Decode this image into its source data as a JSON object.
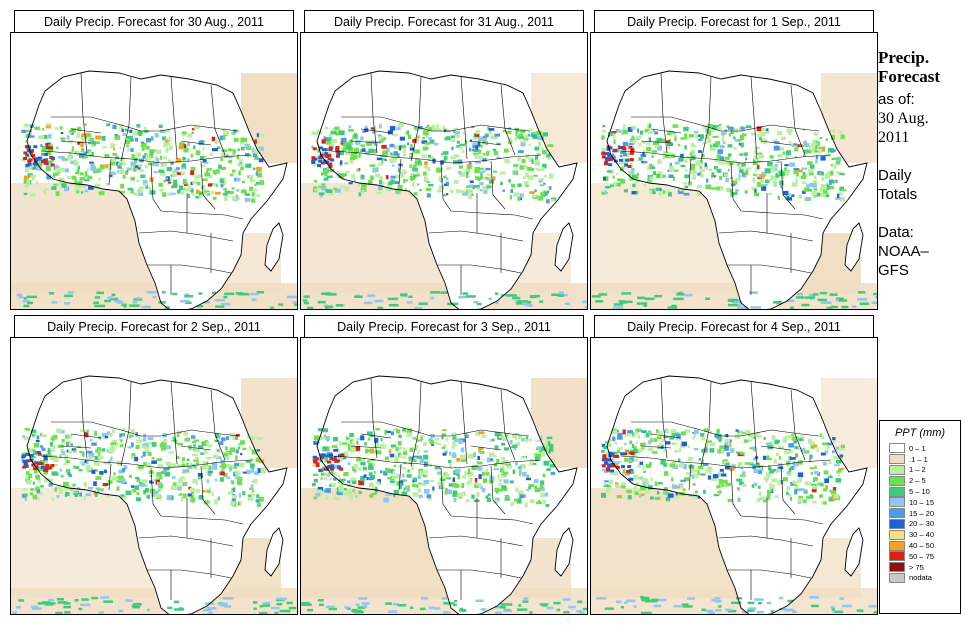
{
  "panels": [
    {
      "title": "Daily Precip. Forecast for  30 Aug., 2011",
      "seed": 1
    },
    {
      "title": "Daily Precip. Forecast for  31 Aug., 2011",
      "seed": 2
    },
    {
      "title": "Daily Precip. Forecast for  1 Sep., 2011",
      "seed": 3
    },
    {
      "title": "Daily Precip. Forecast for  2 Sep., 2011",
      "seed": 4
    },
    {
      "title": "Daily Precip. Forecast for  3 Sep., 2011",
      "seed": 5
    },
    {
      "title": "Daily Precip. Forecast for  4 Sep., 2011",
      "seed": 6
    }
  ],
  "sidebar": {
    "heading1": "Precip.",
    "heading2": "Forecast",
    "asof": "as of:",
    "date1": "30 Aug.",
    "date2": "2011",
    "daily1": "Daily",
    "daily2": "Totals",
    "data1": "Data:",
    "data2": "NOAA–",
    "data3": "GFS"
  },
  "legend": {
    "title": "PPT (mm)",
    "items": [
      {
        "label": "0 – 1",
        "color": "#ffffff"
      },
      {
        "label": ".1 – 1",
        "color": "#f0dcc0"
      },
      {
        "label": "1 – 2",
        "color": "#b8f0a0"
      },
      {
        "label": "2 – 5",
        "color": "#6ee04e"
      },
      {
        "label": "5 – 10",
        "color": "#3ecb7a"
      },
      {
        "label": "10 – 15",
        "color": "#8cc8f0"
      },
      {
        "label": "15 – 20",
        "color": "#4f9ae8"
      },
      {
        "label": "20 – 30",
        "color": "#1f5fd8"
      },
      {
        "label": "30 – 40",
        "color": "#f8e080"
      },
      {
        "label": "40 – 50",
        "color": "#f8a020"
      },
      {
        "label": "50 – 75",
        "color": "#e02010"
      },
      {
        "label": "> 75",
        "color": "#901010"
      },
      {
        "label": "nodata",
        "color": "#c8c8c8"
      }
    ]
  }
}
